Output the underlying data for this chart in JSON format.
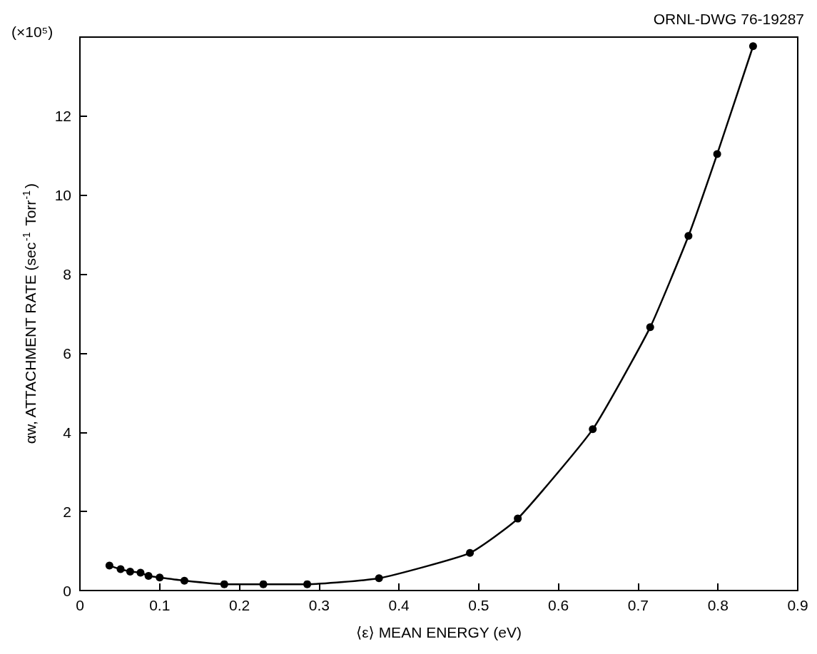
{
  "chart_data": {
    "type": "line",
    "xlabel": "⟨ε⟩ MEAN ENERGY (eV)",
    "ylabel": "αw, ATTACHMENT RATE (sec$^{-1}$ Torr$^{-1}$)",
    "annotations": [
      "ORNL-DWG 76-19287",
      "(×10⁵)"
    ],
    "series": [
      {
        "color": "#000000",
        "x": [
          0.037,
          0.051,
          0.063,
          0.076,
          0.086,
          0.1,
          0.131,
          0.181,
          0.23,
          0.285,
          0.375,
          0.489,
          0.549,
          0.643,
          0.715,
          0.763,
          0.799,
          0.844
        ],
        "values": [
          0.63,
          0.54,
          0.48,
          0.45,
          0.37,
          0.33,
          0.25,
          0.16,
          0.16,
          0.16,
          0.31,
          0.95,
          1.82,
          4.08,
          6.66,
          8.97,
          11.04,
          13.77
        ]
      }
    ],
    "xlim": [
      0,
      0.9
    ],
    "xticks": [
      0,
      0.1,
      0.2,
      0.3,
      0.4,
      0.5,
      0.6,
      0.7,
      0.8,
      0.9
    ],
    "ylim": [
      0,
      14
    ],
    "yticks": [
      0,
      2,
      4,
      6,
      8,
      10,
      12
    ],
    "marker": "circle",
    "line_style": "solid",
    "grid": false
  }
}
